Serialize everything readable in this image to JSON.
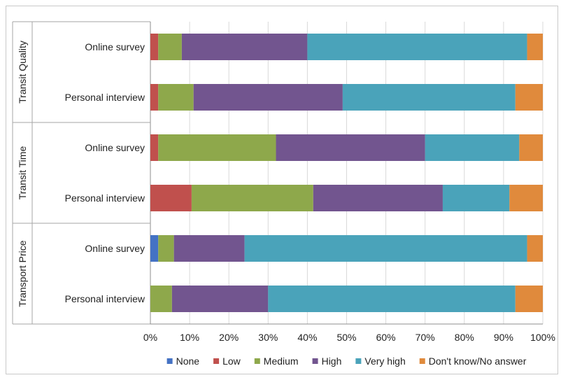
{
  "chart_data": {
    "type": "bar",
    "orientation": "horizontal",
    "stacked": true,
    "percent": true,
    "xlim": [
      0,
      100
    ],
    "x_ticks": [
      "0%",
      "10%",
      "20%",
      "30%",
      "40%",
      "50%",
      "60%",
      "70%",
      "80%",
      "90%",
      "100%"
    ],
    "grid": true,
    "legend_position": "bottom",
    "groups": [
      {
        "name": "Transit Quality",
        "rows": [
          {
            "label": "Online survey",
            "values": [
              0,
              2,
              6,
              32,
              56,
              4
            ]
          },
          {
            "label": "Personal interview",
            "values": [
              0,
              2,
              9,
              38,
              44,
              7
            ]
          }
        ]
      },
      {
        "name": "Transit Time",
        "rows": [
          {
            "label": "Online survey",
            "values": [
              0,
              2,
              30,
              38,
              24,
              6
            ]
          },
          {
            "label": "Personal interview",
            "values": [
              0,
              10.5,
              31,
              33,
              17,
              8.5
            ]
          }
        ]
      },
      {
        "name": "Transport Price",
        "rows": [
          {
            "label": "Online survey",
            "values": [
              2,
              0,
              4,
              18,
              72,
              4
            ]
          },
          {
            "label": "Personal interview",
            "values": [
              0,
              0,
              5.5,
              24.5,
              63,
              7
            ]
          }
        ]
      }
    ],
    "series": [
      {
        "name": "None",
        "color": "#4472c4"
      },
      {
        "name": "Low",
        "color": "#c0504d"
      },
      {
        "name": "Medium",
        "color": "#8ea84b"
      },
      {
        "name": "High",
        "color": "#72558f"
      },
      {
        "name": "Very high",
        "color": "#4aa3ba"
      },
      {
        "name": "Don't know/No answer",
        "color": "#e08a3c"
      }
    ]
  }
}
